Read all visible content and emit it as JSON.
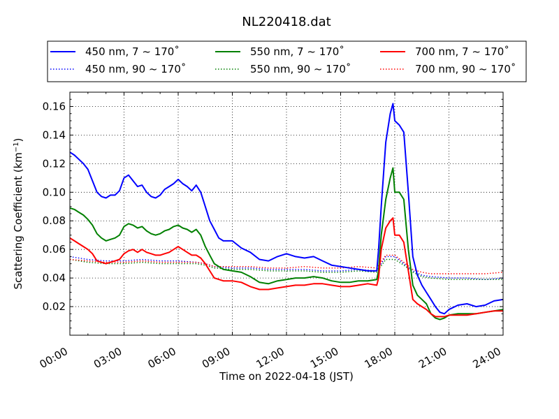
{
  "chart_data": {
    "type": "line",
    "title": "NL220418.dat",
    "xlabel": "Time on 2022-04-18 (JST)",
    "ylabel": "Scattering Coefficient (km",
    "ylabel_exponent": "−1",
    "ylabel_close": ")",
    "xlim": [
      0,
      24
    ],
    "ylim": [
      0.0,
      0.17
    ],
    "grid": true,
    "legend_position": "top",
    "x_ticks": [
      0,
      3,
      6,
      9,
      12,
      15,
      18,
      21,
      24
    ],
    "x_tick_labels": [
      "00:00",
      "03:00",
      "06:00",
      "09:00",
      "12:00",
      "15:00",
      "18:00",
      "21:00",
      "24:00"
    ],
    "y_ticks": [
      0.02,
      0.04,
      0.06,
      0.08,
      0.1,
      0.12,
      0.14,
      0.16
    ],
    "y_tick_labels": [
      "0.02",
      "0.04",
      "0.06",
      "0.08",
      "0.10",
      "0.12",
      "0.14",
      "0.16"
    ],
    "series": [
      {
        "name": "450 nm, 7 ~ 170˚",
        "color": "#0000ff",
        "style": "solid",
        "x": [
          0,
          0.25,
          0.5,
          0.75,
          1,
          1.25,
          1.5,
          1.75,
          2,
          2.25,
          2.5,
          2.75,
          3,
          3.25,
          3.5,
          3.75,
          4,
          4.25,
          4.5,
          4.75,
          5,
          5.25,
          5.5,
          5.75,
          6,
          6.25,
          6.5,
          6.75,
          7,
          7.25,
          7.5,
          7.75,
          8,
          8.25,
          8.5,
          8.75,
          9,
          9.5,
          10,
          10.5,
          11,
          11.5,
          12,
          12.5,
          13,
          13.5,
          14,
          14.5,
          15,
          15.5,
          16,
          16.5,
          17,
          17.1,
          17.25,
          17.5,
          17.75,
          17.9,
          18,
          18.25,
          18.5,
          18.75,
          19,
          19.25,
          19.5,
          19.75,
          20,
          20.25,
          20.5,
          20.75,
          21,
          21.5,
          22,
          22.5,
          23,
          23.5,
          24
        ],
        "values": [
          0.128,
          0.126,
          0.123,
          0.12,
          0.116,
          0.108,
          0.1,
          0.097,
          0.096,
          0.098,
          0.098,
          0.101,
          0.11,
          0.112,
          0.108,
          0.104,
          0.105,
          0.1,
          0.097,
          0.096,
          0.098,
          0.102,
          0.104,
          0.106,
          0.109,
          0.106,
          0.104,
          0.101,
          0.105,
          0.1,
          0.09,
          0.08,
          0.074,
          0.068,
          0.066,
          0.066,
          0.066,
          0.061,
          0.058,
          0.053,
          0.052,
          0.055,
          0.057,
          0.055,
          0.054,
          0.055,
          0.052,
          0.049,
          0.048,
          0.047,
          0.046,
          0.045,
          0.045,
          0.06,
          0.09,
          0.135,
          0.155,
          0.162,
          0.15,
          0.147,
          0.142,
          0.1,
          0.055,
          0.042,
          0.035,
          0.03,
          0.025,
          0.02,
          0.016,
          0.015,
          0.018,
          0.021,
          0.022,
          0.02,
          0.021,
          0.024,
          0.025
        ]
      },
      {
        "name": "450 nm, 90 ~ 170˚",
        "color": "#0000ff",
        "style": "dotted",
        "x": [
          0,
          1,
          2,
          3,
          4,
          5,
          6,
          7,
          7.5,
          8,
          9,
          10,
          11,
          12,
          13,
          14,
          15,
          16,
          17,
          17.5,
          18,
          18.5,
          19,
          19.5,
          20,
          21,
          22,
          23,
          24
        ],
        "values": [
          0.055,
          0.053,
          0.052,
          0.052,
          0.053,
          0.052,
          0.052,
          0.051,
          0.05,
          0.048,
          0.047,
          0.047,
          0.046,
          0.046,
          0.046,
          0.045,
          0.045,
          0.046,
          0.045,
          0.055,
          0.055,
          0.05,
          0.045,
          0.042,
          0.041,
          0.04,
          0.04,
          0.039,
          0.04
        ]
      },
      {
        "name": "550 nm, 7 ~ 170˚",
        "color": "#008000",
        "style": "solid",
        "x": [
          0,
          0.25,
          0.5,
          0.75,
          1,
          1.25,
          1.5,
          1.75,
          2,
          2.25,
          2.5,
          2.75,
          3,
          3.25,
          3.5,
          3.75,
          4,
          4.25,
          4.5,
          4.75,
          5,
          5.25,
          5.5,
          5.75,
          6,
          6.25,
          6.5,
          6.75,
          7,
          7.25,
          7.5,
          7.75,
          8,
          8.5,
          9,
          9.5,
          10,
          10.5,
          11,
          11.5,
          12,
          12.5,
          13,
          13.5,
          14,
          14.5,
          15,
          15.5,
          16,
          16.5,
          17,
          17.1,
          17.25,
          17.5,
          17.75,
          17.9,
          18,
          18.25,
          18.5,
          18.75,
          19,
          19.25,
          19.5,
          19.75,
          20,
          20.25,
          20.5,
          20.75,
          21,
          21.5,
          22,
          22.5,
          23,
          23.5,
          24
        ],
        "values": [
          0.089,
          0.088,
          0.086,
          0.084,
          0.081,
          0.077,
          0.071,
          0.068,
          0.066,
          0.067,
          0.068,
          0.07,
          0.076,
          0.078,
          0.077,
          0.075,
          0.076,
          0.073,
          0.071,
          0.07,
          0.071,
          0.073,
          0.074,
          0.076,
          0.077,
          0.075,
          0.074,
          0.072,
          0.074,
          0.07,
          0.062,
          0.056,
          0.05,
          0.046,
          0.045,
          0.044,
          0.041,
          0.037,
          0.036,
          0.038,
          0.039,
          0.04,
          0.04,
          0.041,
          0.04,
          0.038,
          0.037,
          0.037,
          0.038,
          0.038,
          0.039,
          0.045,
          0.07,
          0.095,
          0.11,
          0.117,
          0.1,
          0.1,
          0.095,
          0.06,
          0.035,
          0.028,
          0.025,
          0.022,
          0.015,
          0.012,
          0.011,
          0.012,
          0.014,
          0.015,
          0.015,
          0.015,
          0.016,
          0.017,
          0.018
        ]
      },
      {
        "name": "550 nm, 90 ~ 170˚",
        "color": "#008000",
        "style": "dotted",
        "x": [
          0,
          1,
          2,
          3,
          4,
          5,
          6,
          7,
          7.5,
          8,
          9,
          10,
          11,
          12,
          13,
          14,
          15,
          16,
          17,
          17.5,
          18,
          18.5,
          19,
          19.5,
          20,
          21,
          22,
          23,
          24
        ],
        "values": [
          0.053,
          0.051,
          0.05,
          0.05,
          0.051,
          0.05,
          0.05,
          0.05,
          0.049,
          0.047,
          0.046,
          0.046,
          0.045,
          0.045,
          0.045,
          0.044,
          0.044,
          0.045,
          0.044,
          0.053,
          0.053,
          0.049,
          0.044,
          0.041,
          0.04,
          0.039,
          0.039,
          0.039,
          0.039
        ]
      },
      {
        "name": "700 nm, 7 ~ 170˚",
        "color": "#ff0000",
        "style": "solid",
        "x": [
          0,
          0.25,
          0.5,
          0.75,
          1,
          1.25,
          1.5,
          1.75,
          2,
          2.25,
          2.5,
          2.75,
          3,
          3.25,
          3.5,
          3.75,
          4,
          4.25,
          4.5,
          4.75,
          5,
          5.25,
          5.5,
          5.75,
          6,
          6.25,
          6.5,
          6.75,
          7,
          7.25,
          7.5,
          7.75,
          8,
          8.5,
          9,
          9.5,
          10,
          10.5,
          11,
          11.5,
          12,
          12.5,
          13,
          13.5,
          14,
          14.5,
          15,
          15.5,
          16,
          16.5,
          17,
          17.1,
          17.25,
          17.5,
          17.75,
          17.9,
          18,
          18.25,
          18.5,
          18.75,
          19,
          19.25,
          19.5,
          19.75,
          20,
          20.25,
          20.5,
          20.75,
          21,
          21.5,
          22,
          22.5,
          23,
          23.5,
          24
        ],
        "values": [
          0.068,
          0.066,
          0.064,
          0.062,
          0.06,
          0.057,
          0.052,
          0.051,
          0.05,
          0.051,
          0.052,
          0.053,
          0.057,
          0.059,
          0.06,
          0.058,
          0.06,
          0.058,
          0.057,
          0.056,
          0.056,
          0.057,
          0.058,
          0.06,
          0.062,
          0.06,
          0.058,
          0.056,
          0.056,
          0.054,
          0.05,
          0.045,
          0.04,
          0.038,
          0.038,
          0.037,
          0.034,
          0.032,
          0.032,
          0.033,
          0.034,
          0.035,
          0.035,
          0.036,
          0.036,
          0.035,
          0.034,
          0.034,
          0.035,
          0.036,
          0.035,
          0.04,
          0.06,
          0.075,
          0.08,
          0.082,
          0.07,
          0.07,
          0.065,
          0.045,
          0.025,
          0.022,
          0.02,
          0.018,
          0.015,
          0.013,
          0.013,
          0.013,
          0.014,
          0.014,
          0.014,
          0.015,
          0.016,
          0.017,
          0.017
        ]
      },
      {
        "name": "700 nm, 90 ~ 170˚",
        "color": "#ff0000",
        "style": "dotted",
        "x": [
          0,
          1,
          2,
          3,
          4,
          5,
          6,
          7,
          7.5,
          8,
          9,
          10,
          11,
          12,
          13,
          14,
          15,
          16,
          17,
          17.5,
          18,
          18.5,
          19,
          19.5,
          20,
          21,
          22,
          23,
          24
        ],
        "values": [
          0.053,
          0.052,
          0.051,
          0.051,
          0.052,
          0.051,
          0.051,
          0.051,
          0.05,
          0.048,
          0.048,
          0.048,
          0.047,
          0.047,
          0.048,
          0.047,
          0.047,
          0.048,
          0.047,
          0.056,
          0.056,
          0.051,
          0.046,
          0.044,
          0.043,
          0.043,
          0.043,
          0.043,
          0.044
        ]
      }
    ]
  }
}
